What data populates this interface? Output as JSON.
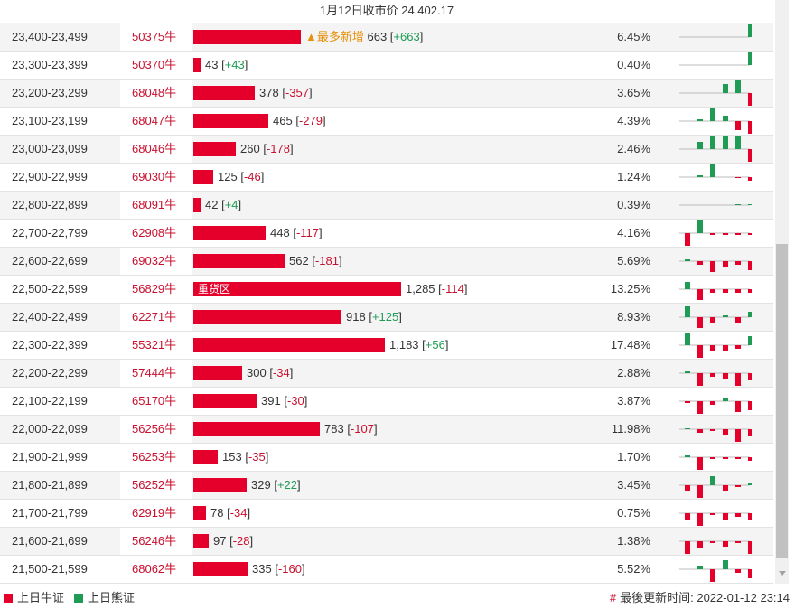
{
  "header": {
    "title": "1月12日收市价 24,402.17"
  },
  "colors": {
    "bull": "#e4002b",
    "bear": "#1f9b55",
    "badge": "#e6920e"
  },
  "bar_max_value": 1285,
  "rows": [
    {
      "range": "23,400-23,499",
      "code": "50375牛",
      "value": "663",
      "delta": "+663",
      "value_num": 663,
      "pct": "6.45%",
      "badge": "▲最多新增",
      "spark": [
        0,
        0,
        0,
        0,
        0,
        14
      ]
    },
    {
      "range": "23,300-23,399",
      "code": "50370牛",
      "value": "43",
      "delta": "+43",
      "value_num": 43,
      "pct": "0.40%",
      "spark": [
        0,
        0,
        0,
        0,
        0,
        14
      ]
    },
    {
      "range": "23,200-23,299",
      "code": "68048牛",
      "value": "378",
      "delta": "-357",
      "value_num": 378,
      "pct": "3.65%",
      "spark": [
        0,
        0,
        0,
        10,
        14,
        -14
      ]
    },
    {
      "range": "23,100-23,199",
      "code": "68047牛",
      "value": "465",
      "delta": "-279",
      "value_num": 465,
      "pct": "4.39%",
      "spark": [
        0,
        2,
        14,
        6,
        -10,
        -14
      ]
    },
    {
      "range": "23,000-23,099",
      "code": "68046牛",
      "value": "260",
      "delta": "-178",
      "value_num": 260,
      "pct": "2.46%",
      "spark": [
        0,
        8,
        14,
        14,
        14,
        -14
      ]
    },
    {
      "range": "22,900-22,999",
      "code": "69030牛",
      "value": "125",
      "delta": "-46",
      "value_num": 125,
      "pct": "1.24%",
      "spark": [
        0,
        2,
        14,
        0,
        -1,
        -4
      ]
    },
    {
      "range": "22,800-22,899",
      "code": "68091牛",
      "value": "42",
      "delta": "+4",
      "value_num": 42,
      "pct": "0.39%",
      "spark": [
        0,
        0,
        0,
        0,
        1,
        1
      ]
    },
    {
      "range": "22,700-22,799",
      "code": "62908牛",
      "value": "448",
      "delta": "-117",
      "value_num": 448,
      "pct": "4.16%",
      "spark": [
        -14,
        14,
        -2,
        -2,
        -2,
        -2
      ]
    },
    {
      "range": "22,600-22,699",
      "code": "69032牛",
      "value": "562",
      "delta": "-181",
      "value_num": 562,
      "pct": "5.69%",
      "spark": [
        2,
        -4,
        -12,
        -6,
        -4,
        -10
      ]
    },
    {
      "range": "22,500-22,599",
      "code": "56829牛",
      "value": "1,285",
      "delta": "-114",
      "value_num": 1285,
      "pct": "13.25%",
      "badge_in": "重货区",
      "spark": [
        8,
        -12,
        -4,
        -4,
        -4,
        -4
      ]
    },
    {
      "range": "22,400-22,499",
      "code": "62271牛",
      "value": "918",
      "delta": "+125",
      "value_num": 918,
      "pct": "8.93%",
      "spark": [
        12,
        -12,
        -6,
        2,
        -6,
        6
      ]
    },
    {
      "range": "22,300-22,399",
      "code": "55321牛",
      "value": "1,183",
      "delta": "+56",
      "value_num": 1183,
      "pct": "17.48%",
      "spark": [
        14,
        -14,
        -6,
        -6,
        -4,
        10
      ]
    },
    {
      "range": "22,200-22,299",
      "code": "57444牛",
      "value": "300",
      "delta": "-34",
      "value_num": 300,
      "pct": "2.88%",
      "spark": [
        2,
        -14,
        -4,
        -6,
        -14,
        -8
      ]
    },
    {
      "range": "22,100-22,199",
      "code": "65170牛",
      "value": "391",
      "delta": "-30",
      "value_num": 391,
      "pct": "3.87%",
      "spark": [
        -2,
        -14,
        -4,
        4,
        -12,
        -10
      ]
    },
    {
      "range": "22,000-22,099",
      "code": "56256牛",
      "value": "783",
      "delta": "-107",
      "value_num": 783,
      "pct": "11.98%",
      "spark": [
        1,
        -4,
        -2,
        -6,
        -14,
        -8
      ]
    },
    {
      "range": "21,900-21,999",
      "code": "56253牛",
      "value": "153",
      "delta": "-35",
      "value_num": 153,
      "pct": "1.70%",
      "spark": [
        2,
        -14,
        -2,
        -2,
        -2,
        -4
      ]
    },
    {
      "range": "21,800-21,899",
      "code": "56252牛",
      "value": "329",
      "delta": "+22",
      "value_num": 329,
      "pct": "3.45%",
      "spark": [
        -6,
        -14,
        10,
        -6,
        -2,
        2
      ]
    },
    {
      "range": "21,700-21,799",
      "code": "62919牛",
      "value": "78",
      "delta": "-34",
      "value_num": 78,
      "pct": "0.75%",
      "spark": [
        -8,
        -14,
        -2,
        -8,
        -4,
        -8
      ]
    },
    {
      "range": "21,600-21,699",
      "code": "56246牛",
      "value": "97",
      "delta": "-28",
      "value_num": 97,
      "pct": "1.38%",
      "spark": [
        -14,
        -8,
        -2,
        -6,
        -2,
        -14
      ]
    },
    {
      "range": "21,500-21,599",
      "code": "68062牛",
      "value": "335",
      "delta": "-160",
      "value_num": 335,
      "pct": "5.52%",
      "spark": [
        0,
        4,
        -14,
        10,
        -4,
        -10
      ]
    }
  ],
  "legend": {
    "bull_label": "上日牛证",
    "bear_label": "上日熊证"
  },
  "footer": {
    "updated": "最後更新时间: 2022-01-12 23:14"
  }
}
